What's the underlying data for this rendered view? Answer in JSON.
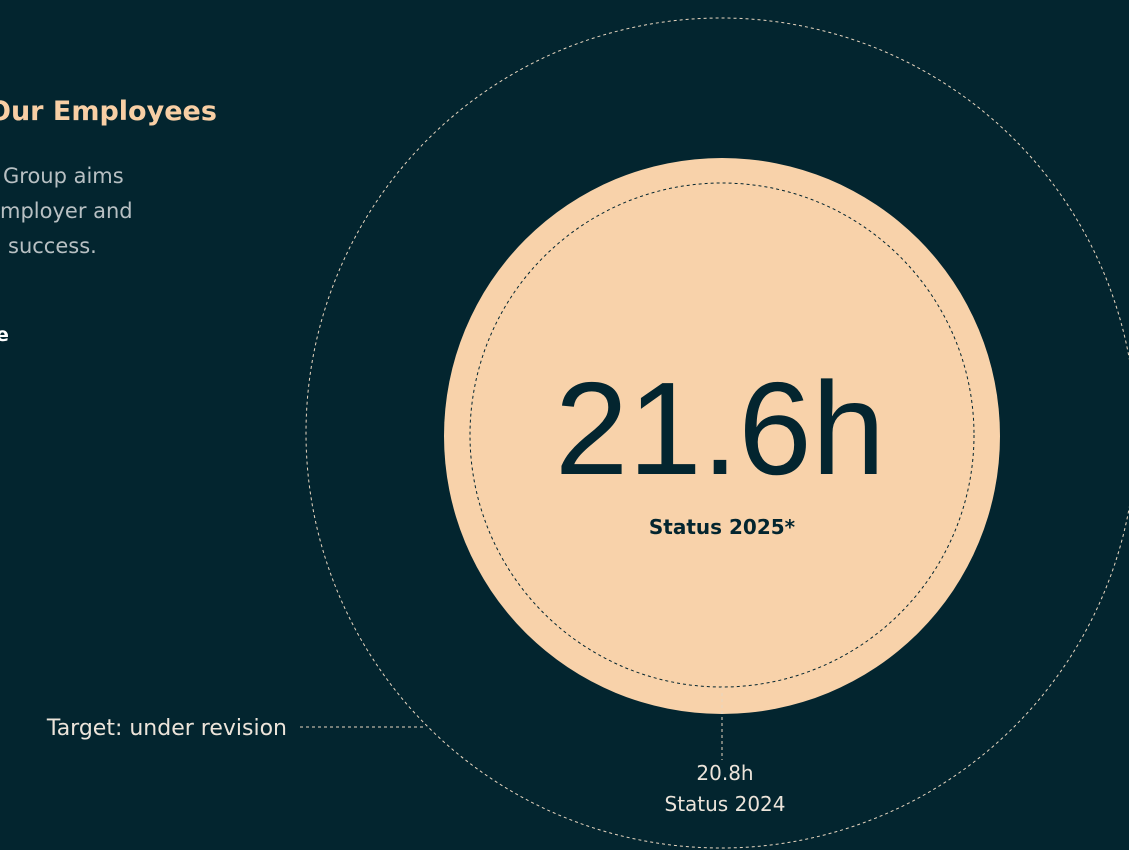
{
  "header": {
    "title": "Our Employees"
  },
  "intro": {
    "lines": [
      "Group aims",
      "mployer and",
      "success."
    ],
    "bold_fragment": "e"
  },
  "metric": {
    "current": {
      "value": "21.6h",
      "label": "Status 2025*"
    },
    "previous": {
      "value": "20.8h",
      "label": "Status 2024"
    },
    "target": "Target: under revision"
  }
}
